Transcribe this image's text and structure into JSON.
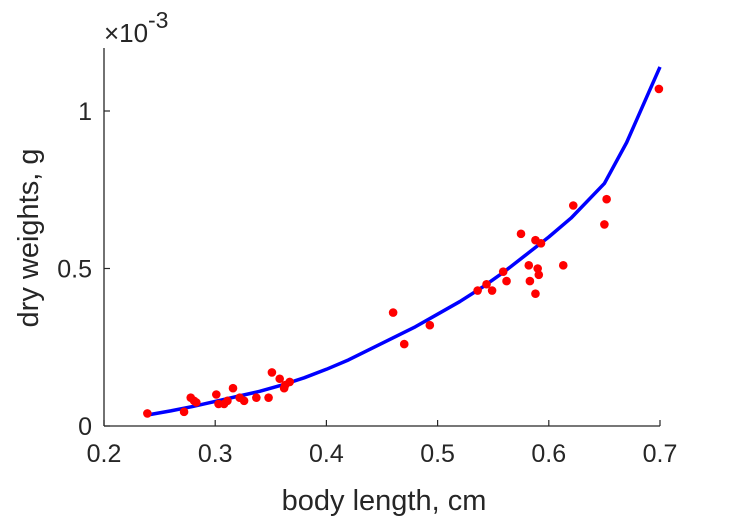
{
  "chart_data": {
    "type": "scatter",
    "xlabel": "body length, cm",
    "ylabel": "dry weights, g",
    "y_multiplier_label": "×10",
    "y_multiplier_exponent": "-3",
    "xlim": [
      0.2,
      0.7
    ],
    "ylim": [
      0,
      1.2
    ],
    "x_ticks": [
      "0.2",
      "0.3",
      "0.4",
      "0.5",
      "0.6",
      "0.7"
    ],
    "y_ticks": [
      "0",
      "0.5",
      "1"
    ],
    "x_tick_values": [
      0.2,
      0.3,
      0.4,
      0.5,
      0.6,
      0.7
    ],
    "y_tick_values": [
      0,
      0.5,
      1
    ],
    "grid": false,
    "series": [
      {
        "type": "scatter",
        "color": "#ff0000",
        "x": [
          0.239,
          0.272,
          0.278,
          0.281,
          0.283,
          0.301,
          0.303,
          0.308,
          0.311,
          0.316,
          0.322,
          0.326,
          0.337,
          0.348,
          0.351,
          0.358,
          0.362,
          0.363,
          0.367,
          0.46,
          0.47,
          0.493,
          0.536,
          0.544,
          0.549,
          0.559,
          0.562,
          0.575,
          0.582,
          0.583,
          0.588,
          0.588,
          0.59,
          0.591,
          0.593,
          0.613,
          0.622,
          0.65,
          0.652,
          0.699
        ],
        "y": [
          0.04,
          0.045,
          0.09,
          0.08,
          0.075,
          0.1,
          0.07,
          0.07,
          0.08,
          0.12,
          0.09,
          0.08,
          0.09,
          0.09,
          0.17,
          0.15,
          0.12,
          0.13,
          0.14,
          0.36,
          0.26,
          0.32,
          0.43,
          0.45,
          0.43,
          0.49,
          0.46,
          0.61,
          0.51,
          0.46,
          0.59,
          0.42,
          0.5,
          0.48,
          0.58,
          0.51,
          0.7,
          0.64,
          0.72,
          1.07
        ]
      },
      {
        "type": "line",
        "color": "#0000ff",
        "x": [
          0.239,
          0.26,
          0.28,
          0.3,
          0.32,
          0.34,
          0.36,
          0.38,
          0.4,
          0.42,
          0.44,
          0.46,
          0.48,
          0.5,
          0.52,
          0.54,
          0.56,
          0.58,
          0.6,
          0.62,
          0.65,
          0.67,
          0.69,
          0.7
        ],
        "y": [
          0.035,
          0.048,
          0.062,
          0.078,
          0.094,
          0.11,
          0.13,
          0.153,
          0.18,
          0.21,
          0.245,
          0.28,
          0.315,
          0.355,
          0.395,
          0.44,
          0.49,
          0.545,
          0.6,
          0.66,
          0.77,
          0.9,
          1.06,
          1.14
        ]
      }
    ]
  }
}
